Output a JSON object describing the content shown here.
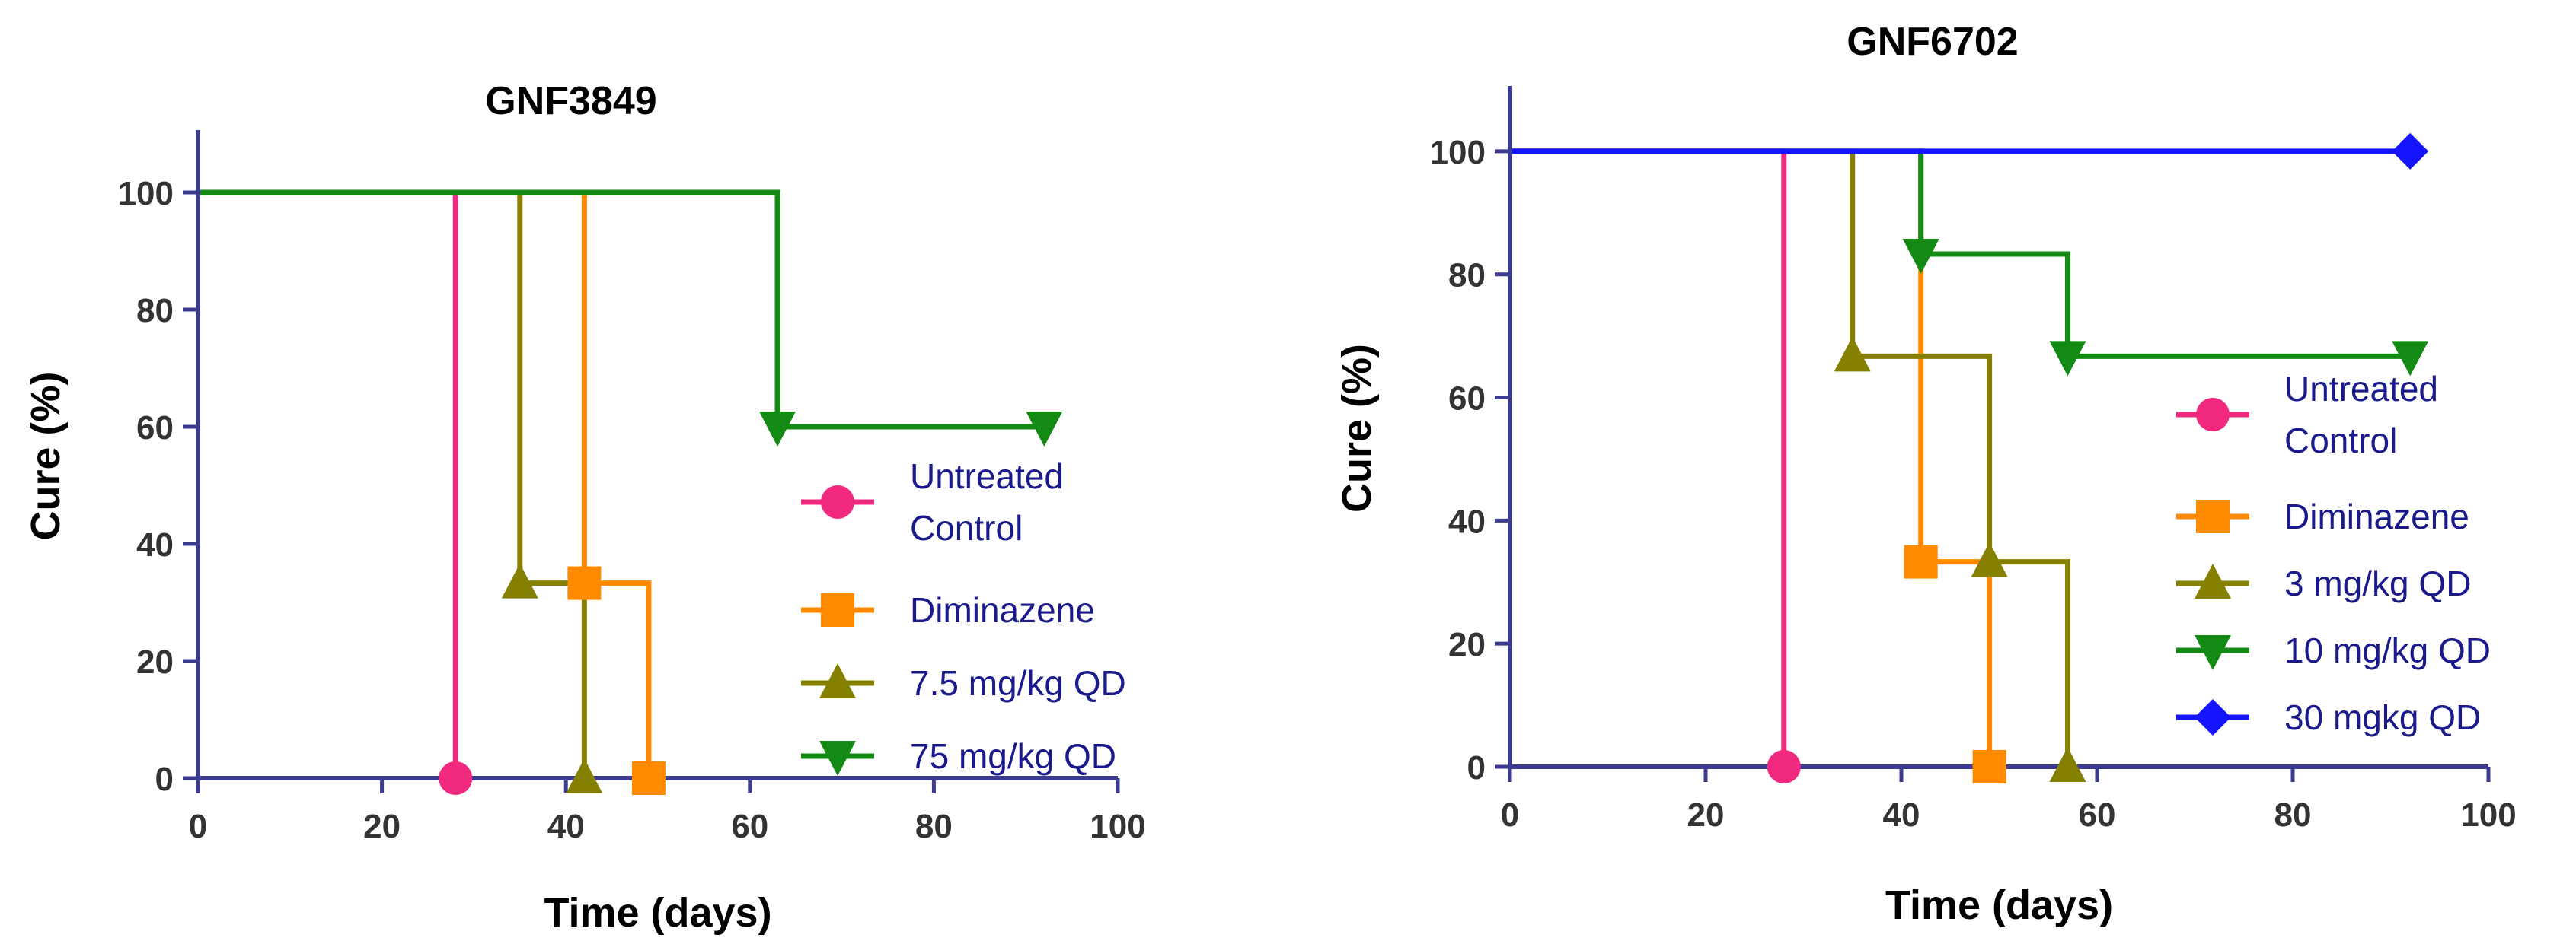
{
  "colors": {
    "axis": "#3b3b8f",
    "untreated": "#f0287e",
    "diminazene": "#ff8a00",
    "olive": "#858000",
    "green": "#138a13",
    "blue": "#1414ff"
  },
  "chart_data": [
    {
      "type": "line",
      "step": true,
      "title": "GNF3849",
      "xlabel": "Time (days)",
      "ylabel": "Cure (%)",
      "xlim": [
        0,
        100
      ],
      "ylim": [
        0,
        110
      ],
      "xticks": [
        0,
        20,
        40,
        60,
        80,
        100
      ],
      "yticks": [
        0,
        20,
        40,
        60,
        80,
        100
      ],
      "legend_position": "right-middle",
      "series": [
        {
          "name": "Untreated Control",
          "legend_lines": [
            "Untreated",
            "Control"
          ],
          "color": "#f0287e",
          "marker": "circle",
          "points": [
            [
              0,
              100
            ],
            [
              28,
              0
            ]
          ],
          "marker_points": [
            [
              28,
              0
            ]
          ]
        },
        {
          "name": "Diminazene",
          "legend_lines": [
            "Diminazene"
          ],
          "color": "#ff8a00",
          "marker": "square",
          "points": [
            [
              0,
              100
            ],
            [
              42,
              33.3
            ],
            [
              49,
              0
            ]
          ],
          "marker_points": [
            [
              42,
              33.3
            ],
            [
              49,
              0
            ]
          ]
        },
        {
          "name": "7.5 mg/kg QD",
          "legend_lines": [
            "7.5 mg/kg QD"
          ],
          "color": "#858000",
          "marker": "triangle-up",
          "points": [
            [
              0,
              100
            ],
            [
              35,
              33.3
            ],
            [
              42,
              0
            ]
          ],
          "marker_points": [
            [
              35,
              33.3
            ],
            [
              42,
              0
            ]
          ]
        },
        {
          "name": "75 mg/kg QD",
          "legend_lines": [
            "75 mg/kg QD"
          ],
          "color": "#138a13",
          "marker": "triangle-down",
          "points": [
            [
              0,
              100
            ],
            [
              63,
              60
            ],
            [
              92,
              60
            ]
          ],
          "marker_points": [
            [
              63,
              60
            ],
            [
              92,
              60
            ]
          ]
        }
      ]
    },
    {
      "type": "line",
      "step": true,
      "title": "GNF6702",
      "xlabel": "Time (days)",
      "ylabel": "Cure (%)",
      "xlim": [
        0,
        100
      ],
      "ylim": [
        0,
        110
      ],
      "xticks": [
        0,
        20,
        40,
        60,
        80,
        100
      ],
      "yticks": [
        0,
        20,
        40,
        60,
        80,
        100
      ],
      "legend_position": "right-middle",
      "series": [
        {
          "name": "Untreated Control",
          "legend_lines": [
            "Untreated",
            "Control"
          ],
          "color": "#f0287e",
          "marker": "circle",
          "points": [
            [
              0,
              100
            ],
            [
              28,
              0
            ]
          ],
          "marker_points": [
            [
              28,
              0
            ]
          ]
        },
        {
          "name": "Diminazene",
          "legend_lines": [
            "Diminazene"
          ],
          "color": "#ff8a00",
          "marker": "square",
          "points": [
            [
              0,
              100
            ],
            [
              42,
              33.3
            ],
            [
              49,
              0
            ]
          ],
          "marker_points": [
            [
              42,
              33.3
            ],
            [
              49,
              0
            ]
          ]
        },
        {
          "name": "3 mg/kg QD",
          "legend_lines": [
            "3 mg/kg QD"
          ],
          "color": "#858000",
          "marker": "triangle-up",
          "points": [
            [
              0,
              100
            ],
            [
              35,
              66.7
            ],
            [
              49,
              33.3
            ],
            [
              57,
              0
            ]
          ],
          "marker_points": [
            [
              35,
              66.7
            ],
            [
              49,
              33.3
            ],
            [
              57,
              0
            ]
          ]
        },
        {
          "name": "10 mg/kg QD",
          "legend_lines": [
            "10 mg/kg QD"
          ],
          "color": "#138a13",
          "marker": "triangle-down",
          "points": [
            [
              0,
              100
            ],
            [
              42,
              83.3
            ],
            [
              57,
              66.7
            ],
            [
              92,
              66.7
            ]
          ],
          "marker_points": [
            [
              42,
              83.3
            ],
            [
              57,
              66.7
            ],
            [
              92,
              66.7
            ]
          ]
        },
        {
          "name": "30 mgkg QD",
          "legend_lines": [
            "30 mgkg QD"
          ],
          "color": "#1414ff",
          "marker": "diamond",
          "points": [
            [
              0,
              100
            ],
            [
              92,
              100
            ]
          ],
          "marker_points": [
            [
              92,
              100
            ]
          ]
        }
      ]
    }
  ]
}
